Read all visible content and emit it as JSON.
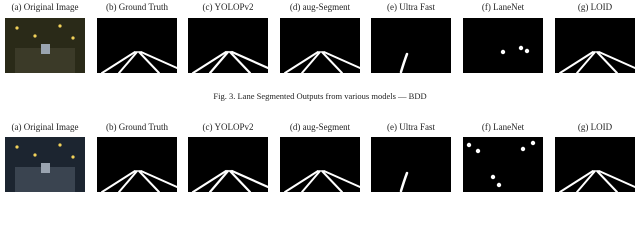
{
  "figure": {
    "rows": [
      {
        "labels": [
          "(a) Original Image",
          "(b) Ground Truth",
          "(c) YOLOPv2",
          "(d) aug-Segment",
          "(e) Ultra Fast",
          "(f) LaneNet",
          "(g) LOID"
        ]
      },
      {
        "labels": [
          "(a) Original Image",
          "(b) Ground Truth",
          "(c) YOLOPv2",
          "(d) aug-Segment",
          "(e) Ultra Fast",
          "(f) LaneNet",
          "(g) LOID"
        ]
      }
    ],
    "caption": "Fig. 3.  Lane Segmented Outputs from various models — BDD"
  }
}
